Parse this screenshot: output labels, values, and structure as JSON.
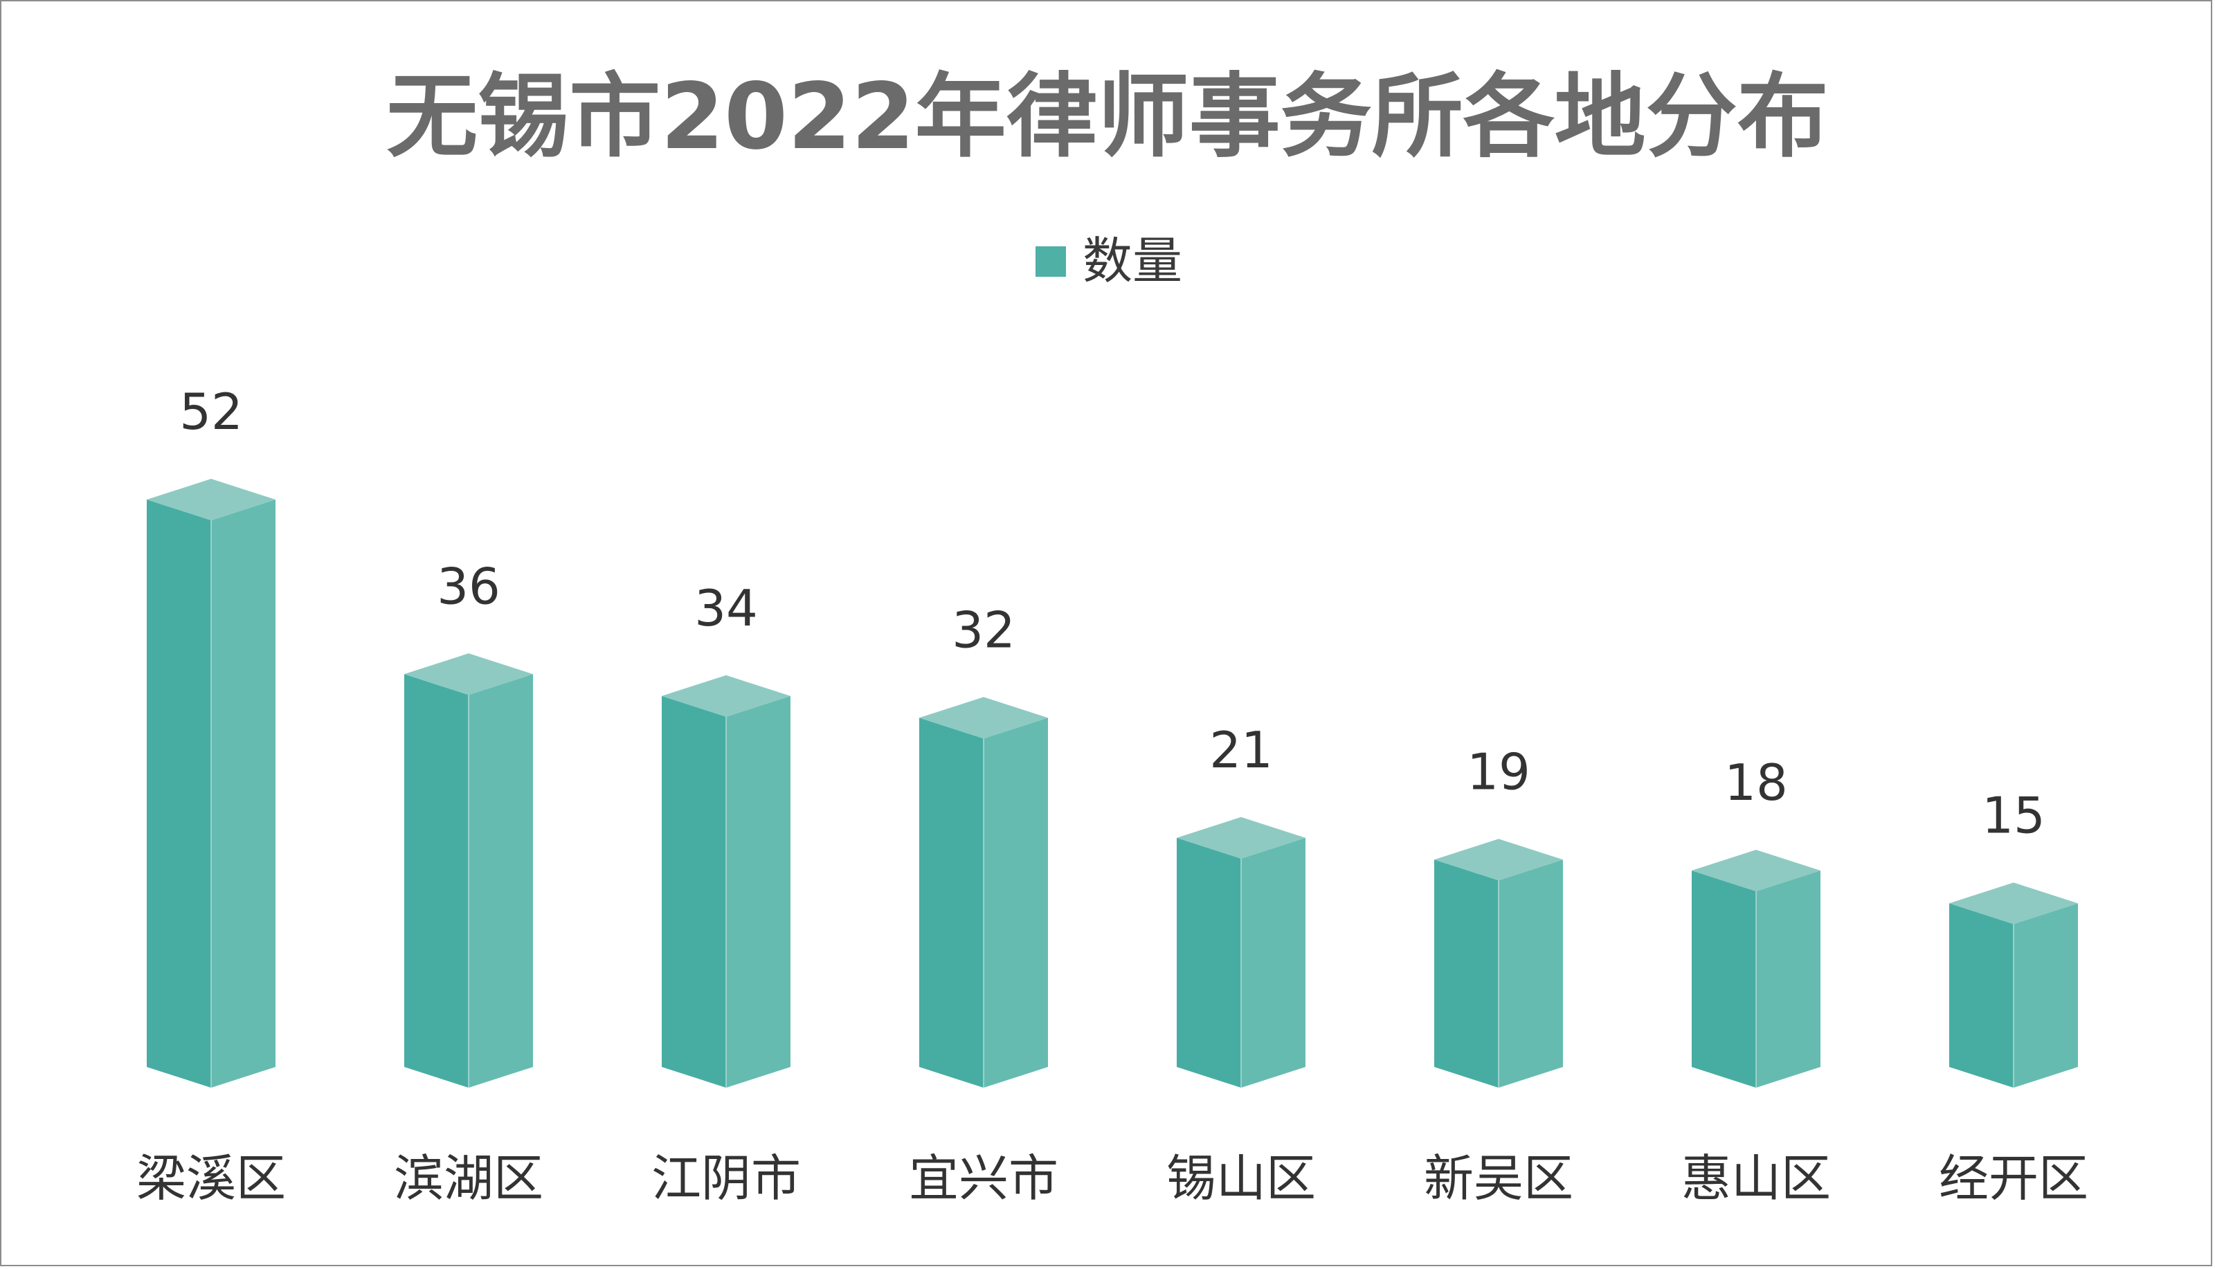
{
  "chart_data": {
    "type": "bar",
    "title": "无锡市2022年律师事务所各地分布",
    "categories": [
      "梁溪区",
      "滨湖区",
      "江阴市",
      "宜兴市",
      "锡山区",
      "新吴区",
      "惠山区",
      "经开区"
    ],
    "series": [
      {
        "name": "数量",
        "values": [
          52,
          36,
          34,
          32,
          21,
          19,
          18,
          15
        ]
      }
    ],
    "ylim": [
      0,
      52
    ],
    "grid": false,
    "legend_position": "top-center",
    "bar_style": "3d-prism",
    "data_labels": true,
    "colors": {
      "front": "#47ADA3",
      "side": "#66BBB1",
      "top": "#8ECAC2",
      "legend_swatch": "#4FB0A6"
    }
  }
}
